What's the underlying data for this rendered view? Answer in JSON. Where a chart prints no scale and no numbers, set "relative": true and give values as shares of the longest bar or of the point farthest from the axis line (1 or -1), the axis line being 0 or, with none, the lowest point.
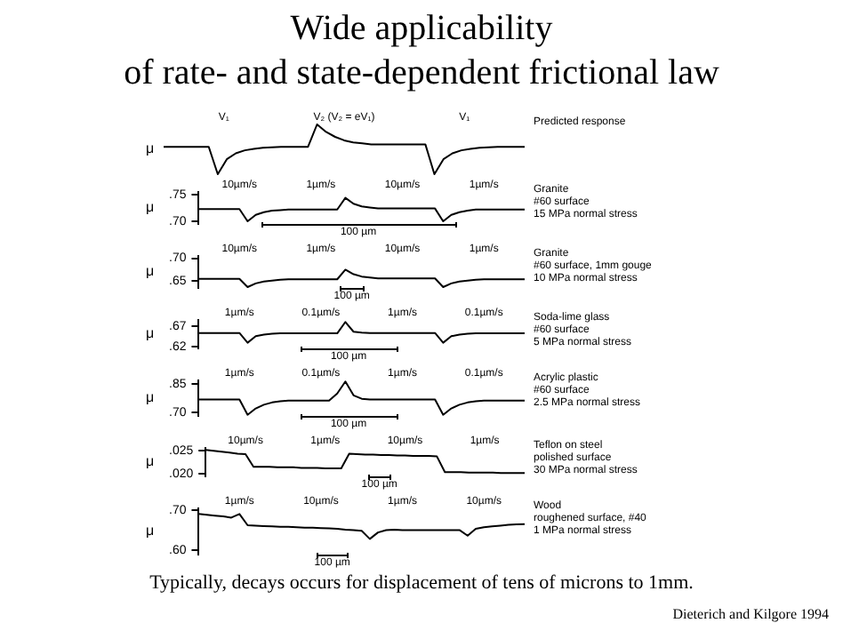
{
  "chart_data": [
    {
      "type": "line",
      "title": "Wide applicability\nof rate- and state-dependent frictional law",
      "subtitle": "Predicted response",
      "ylabel": "μ",
      "relative": true,
      "tick_labels": false,
      "grid": false,
      "legend": false,
      "marker": "none",
      "line_style": "solid",
      "annotations": [
        "V₁",
        "V₂ (V₂ = eV₁)",
        "V₁"
      ],
      "categories": [
        null,
        null,
        null,
        null,
        null,
        null,
        null,
        null,
        null,
        null,
        null,
        null,
        null,
        null,
        null,
        null,
        null,
        null,
        null,
        null,
        null,
        null,
        null,
        null,
        null,
        null,
        null,
        null,
        null,
        null,
        null,
        null,
        null,
        null,
        null,
        null,
        null,
        null,
        null,
        null,
        null
      ],
      "series": [
        {
          "color": "#000000",
          "values": [
            0.55,
            0.55,
            0.55,
            0.55,
            0.55,
            0.55,
            0,
            0.3,
            0.42,
            0.48,
            0.51,
            0.53,
            0.54,
            0.55,
            0.55,
            0.55,
            0.55,
            1,
            0.85,
            0.75,
            0.68,
            0.64,
            0.62,
            0.6,
            0.6,
            0.6,
            0.6,
            0.6,
            0.6,
            0.6,
            0,
            0.3,
            0.42,
            0.48,
            0.51,
            0.53,
            0.54,
            0.55,
            0.55,
            0.55,
            0.55
          ]
        }
      ]
    },
    {
      "type": "line",
      "subtitle": "Granite\n#60 surface\n15 MPa normal stress",
      "ylabel": "μ",
      "xlabel": "100 µm",
      "tick_labels": "y",
      "grid": false,
      "legend": false,
      "marker": "none",
      "line_style": "solid",
      "annotations": [
        "10µm/s",
        "1µm/s",
        "10µm/s",
        "1µm/s"
      ],
      "ylim": [
        0.695,
        0.755
      ],
      "yticks": [
        {
          "value": 0.7,
          "label": ".70"
        },
        {
          "value": 0.75,
          "label": ".75"
        }
      ],
      "categories": [
        null,
        null,
        null,
        null,
        null,
        null,
        null,
        null,
        null,
        null,
        null,
        null,
        null,
        null,
        null,
        null,
        null,
        null,
        null,
        null,
        null,
        null,
        null,
        null,
        null,
        null,
        null,
        null,
        null,
        null,
        null,
        null,
        null,
        null,
        null,
        null,
        null,
        null,
        null,
        null,
        null
      ],
      "series": [
        {
          "color": "#000000",
          "values": [
            0.723,
            0.723,
            0.723,
            0.723,
            0.723,
            0.723,
            0.7,
            0.712,
            0.717,
            0.72,
            0.721,
            0.722,
            0.722,
            0.722,
            0.722,
            0.722,
            0.722,
            0.722,
            0.744,
            0.733,
            0.728,
            0.726,
            0.724,
            0.724,
            0.724,
            0.724,
            0.724,
            0.724,
            0.724,
            0.724,
            0.7,
            0.712,
            0.717,
            0.72,
            0.722,
            0.722,
            0.722,
            0.722,
            0.722,
            0.722,
            0.722
          ]
        }
      ]
    },
    {
      "type": "line",
      "subtitle": "Granite\n#60 surface, 1mm gouge\n10 MPa normal stress",
      "ylabel": "μ",
      "xlabel": "100 µm",
      "tick_labels": "y",
      "grid": false,
      "legend": false,
      "marker": "none",
      "line_style": "solid",
      "annotations": [
        "10µm/s",
        "1µm/s",
        "10µm/s",
        "1µm/s"
      ],
      "ylim": [
        0.635,
        0.705
      ],
      "yticks": [
        {
          "value": 0.65,
          "label": ".65"
        },
        {
          "value": 0.7,
          "label": ".70"
        }
      ],
      "categories": [
        null,
        null,
        null,
        null,
        null,
        null,
        null,
        null,
        null,
        null,
        null,
        null,
        null,
        null,
        null,
        null,
        null,
        null,
        null,
        null,
        null,
        null,
        null,
        null,
        null,
        null,
        null,
        null,
        null,
        null,
        null,
        null,
        null,
        null,
        null,
        null,
        null,
        null,
        null,
        null,
        null
      ],
      "series": [
        {
          "color": "#000000",
          "values": [
            0.655,
            0.655,
            0.655,
            0.655,
            0.655,
            0.655,
            0.637,
            0.645,
            0.649,
            0.651,
            0.653,
            0.654,
            0.654,
            0.654,
            0.654,
            0.654,
            0.654,
            0.654,
            0.675,
            0.665,
            0.66,
            0.658,
            0.656,
            0.656,
            0.656,
            0.656,
            0.656,
            0.656,
            0.656,
            0.656,
            0.637,
            0.645,
            0.649,
            0.651,
            0.653,
            0.654,
            0.654,
            0.654,
            0.654,
            0.654,
            0.654
          ]
        }
      ]
    },
    {
      "type": "line",
      "subtitle": "Soda-lime glass\n#60 surface\n5 MPa normal stress",
      "ylabel": "μ",
      "xlabel": "100 µm",
      "tick_labels": "y",
      "grid": false,
      "legend": false,
      "marker": "none",
      "line_style": "solid",
      "annotations": [
        "1µm/s",
        "0.1µm/s",
        "1µm/s",
        "0.1µm/s"
      ],
      "ylim": [
        0.615,
        0.685
      ],
      "yticks": [
        {
          "value": 0.62,
          "label": ".62"
        },
        {
          "value": 0.67,
          "label": ".67"
        }
      ],
      "categories": [
        null,
        null,
        null,
        null,
        null,
        null,
        null,
        null,
        null,
        null,
        null,
        null,
        null,
        null,
        null,
        null,
        null,
        null,
        null,
        null,
        null,
        null,
        null,
        null,
        null,
        null,
        null,
        null,
        null,
        null,
        null,
        null,
        null,
        null,
        null,
        null,
        null,
        null,
        null,
        null,
        null
      ],
      "series": [
        {
          "color": "#000000",
          "values": [
            0.653,
            0.653,
            0.653,
            0.653,
            0.653,
            0.653,
            0.629,
            0.645,
            0.649,
            0.651,
            0.652,
            0.652,
            0.652,
            0.652,
            0.652,
            0.652,
            0.652,
            0.652,
            0.68,
            0.656,
            0.654,
            0.653,
            0.653,
            0.653,
            0.653,
            0.653,
            0.653,
            0.653,
            0.653,
            0.653,
            0.629,
            0.645,
            0.649,
            0.651,
            0.652,
            0.652,
            0.652,
            0.652,
            0.652,
            0.652,
            0.652
          ]
        }
      ]
    },
    {
      "type": "line",
      "subtitle": "Acrylic plastic\n#60 surface\n2.5 MPa normal stress",
      "ylabel": "μ",
      "xlabel": "100 µm",
      "tick_labels": "y",
      "grid": false,
      "legend": false,
      "marker": "none",
      "line_style": "solid",
      "annotations": [
        "1µm/s",
        "0.1µm/s",
        "1µm/s",
        "0.1µm/s"
      ],
      "ylim": [
        0.68,
        0.87
      ],
      "yticks": [
        {
          "value": 0.7,
          "label": ".70"
        },
        {
          "value": 0.85,
          "label": ".85"
        }
      ],
      "categories": [
        null,
        null,
        null,
        null,
        null,
        null,
        null,
        null,
        null,
        null,
        null,
        null,
        null,
        null,
        null,
        null,
        null,
        null,
        null,
        null,
        null,
        null,
        null,
        null,
        null,
        null,
        null,
        null,
        null,
        null,
        null,
        null,
        null,
        null,
        null,
        null,
        null,
        null,
        null,
        null,
        null
      ],
      "series": [
        {
          "color": "#000000",
          "values": [
            0.768,
            0.768,
            0.768,
            0.768,
            0.768,
            0.768,
            0.686,
            0.72,
            0.74,
            0.752,
            0.758,
            0.762,
            0.762,
            0.762,
            0.762,
            0.762,
            0.762,
            0.8,
            0.864,
            0.79,
            0.772,
            0.768,
            0.768,
            0.768,
            0.768,
            0.768,
            0.768,
            0.768,
            0.768,
            0.768,
            0.686,
            0.72,
            0.74,
            0.752,
            0.758,
            0.762,
            0.762,
            0.762,
            0.762,
            0.762,
            0.762
          ]
        }
      ]
    },
    {
      "type": "line",
      "subtitle": "Teflon on steel\npolished surface\n30 MPa normal stress",
      "ylabel": "μ",
      "xlabel": "100 µm",
      "tick_labels": "y",
      "grid": false,
      "legend": false,
      "marker": "none",
      "line_style": "solid",
      "annotations": [
        "10µm/s",
        "1µm/s",
        "10µm/s",
        "1µm/s"
      ],
      "ylim": [
        0.0195,
        0.0255
      ],
      "yticks": [
        {
          "value": 0.02,
          "label": ".020"
        },
        {
          "value": 0.025,
          "label": ".025"
        }
      ],
      "categories": [
        null,
        null,
        null,
        null,
        null,
        null,
        null,
        null,
        null,
        null,
        null,
        null,
        null,
        null,
        null,
        null,
        null,
        null,
        null,
        null,
        null,
        null,
        null,
        null,
        null,
        null,
        null,
        null,
        null,
        null,
        null,
        null,
        null,
        null,
        null,
        null,
        null,
        null,
        null,
        null,
        null
      ],
      "series": [
        {
          "color": "#000000",
          "values": [
            0.0251,
            0.0249,
            0.0247,
            0.0245,
            0.0243,
            0.0242,
            0.0215,
            0.0215,
            0.0215,
            0.0214,
            0.0214,
            0.0214,
            0.0213,
            0.0213,
            0.0213,
            0.0212,
            0.0212,
            0.0212,
            0.0243,
            0.0242,
            0.0241,
            0.0241,
            0.024,
            0.024,
            0.0239,
            0.0239,
            0.0238,
            0.0238,
            0.0238,
            0.0237,
            0.0204,
            0.0204,
            0.0204,
            0.0203,
            0.0203,
            0.0203,
            0.0203,
            0.0202,
            0.0202,
            0.0202,
            0.0202
          ]
        }
      ]
    },
    {
      "type": "line",
      "subtitle": "Wood\nroughened surface, #40\n1 MPa normal stress",
      "ylabel": "μ",
      "xlabel": "100 µm",
      "tick_labels": "y",
      "grid": false,
      "legend": false,
      "marker": "none",
      "line_style": "solid",
      "annotations": [
        "1µm/s",
        "10µm/s",
        "1µm/s",
        "10µm/s"
      ],
      "ylim": [
        0.59,
        0.705
      ],
      "yticks": [
        {
          "value": 0.6,
          "label": ".60"
        },
        {
          "value": 0.7,
          "label": ".70"
        }
      ],
      "categories": [
        null,
        null,
        null,
        null,
        null,
        null,
        null,
        null,
        null,
        null,
        null,
        null,
        null,
        null,
        null,
        null,
        null,
        null,
        null,
        null,
        null,
        null,
        null,
        null,
        null,
        null,
        null,
        null,
        null,
        null,
        null,
        null,
        null,
        null,
        null,
        null,
        null,
        null,
        null,
        null,
        null
      ],
      "series": [
        {
          "color": "#000000",
          "values": [
            0.691,
            0.689,
            0.687,
            0.685,
            0.682,
            0.691,
            0.663,
            0.662,
            0.661,
            0.66,
            0.659,
            0.659,
            0.658,
            0.657,
            0.657,
            0.656,
            0.655,
            0.654,
            0.652,
            0.651,
            0.649,
            0.629,
            0.645,
            0.651,
            0.652,
            0.651,
            0.651,
            0.651,
            0.651,
            0.651,
            0.651,
            0.651,
            0.651,
            0.637,
            0.654,
            0.658,
            0.66,
            0.662,
            0.664,
            0.665,
            0.666
          ]
        }
      ]
    },
    {
      "type": "other",
      "annotations": [
        "Typically, decays occurs for displacement of tens of microns to 1mm.",
        "Dieterich and Kilgore 1994"
      ]
    }
  ]
}
